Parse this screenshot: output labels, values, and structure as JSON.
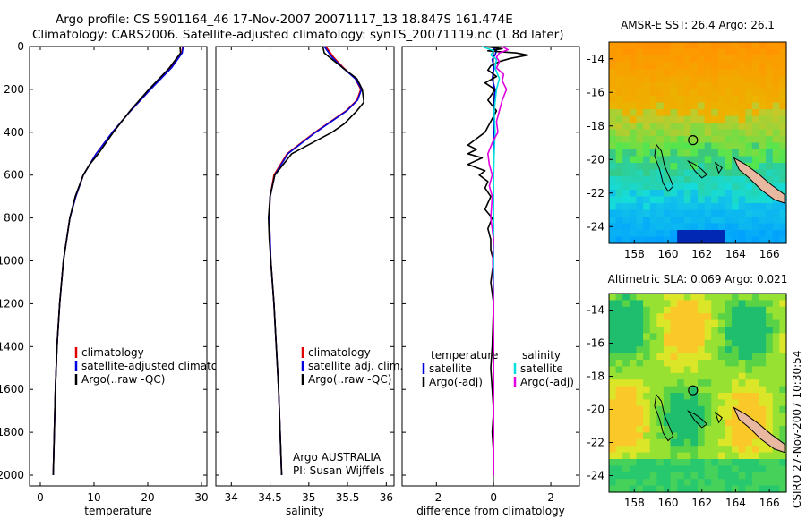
{
  "header": {
    "line1": "Argo profile: CS 5901164_46 17-Nov-2007 20071117_13 18.847S 161.474E",
    "line2": "Climatology: CARS2006. Satellite-adjusted climatology: synTS_20071119.nc (1.8d later)"
  },
  "depth_ticks": [
    "0",
    "200",
    "400",
    "600",
    "800",
    "1000",
    "1200",
    "1400",
    "1600",
    "1800",
    "2000"
  ],
  "chart_data": [
    {
      "type": "line",
      "xlabel": "temperature",
      "ylabel": "depth",
      "xlim": [
        -2,
        31
      ],
      "ylim": [
        2050,
        0
      ],
      "xticks": [
        "0",
        "10",
        "20",
        "30"
      ],
      "legend": [
        "climatology",
        "satellite-adjusted climatology",
        "Argo(..raw -QC)"
      ],
      "legend_colors": [
        "#e00000",
        "#0000e0",
        "#000000"
      ],
      "series": [
        {
          "name": "climatology",
          "color": "#e00000",
          "depth": [
            0,
            30,
            100,
            200,
            300,
            400,
            500,
            600,
            700,
            800,
            1000,
            1200,
            1400,
            1600,
            1800,
            2000
          ],
          "values": [
            26.5,
            26.3,
            24.3,
            20.5,
            16.8,
            13.4,
            10.4,
            8.0,
            6.6,
            5.5,
            4.3,
            3.6,
            3.1,
            2.8,
            2.6,
            2.4
          ]
        },
        {
          "name": "satellite-adjusted climatology",
          "color": "#0000e0",
          "depth": [
            0,
            30,
            100,
            200,
            300,
            400,
            500,
            600,
            700,
            800,
            1000,
            1200,
            1400,
            1600,
            1800,
            2000
          ],
          "values": [
            26.6,
            26.4,
            24.4,
            20.5,
            16.8,
            13.4,
            10.4,
            8.0,
            6.6,
            5.5,
            4.3,
            3.6,
            3.1,
            2.8,
            2.6,
            2.4
          ]
        },
        {
          "name": "Argo(..raw -QC)",
          "color": "#000000",
          "depth": [
            0,
            30,
            100,
            200,
            300,
            400,
            500,
            550,
            600,
            700,
            800,
            1000,
            1200,
            1400,
            1600,
            1800,
            2000
          ],
          "values": [
            26.0,
            26.1,
            24.0,
            20.2,
            16.7,
            13.6,
            10.8,
            9.2,
            8.0,
            6.5,
            5.5,
            4.3,
            3.6,
            3.1,
            2.8,
            2.6,
            2.4
          ]
        }
      ]
    },
    {
      "type": "line",
      "xlabel": "salinity",
      "ylabel": "depth",
      "xlim": [
        33.8,
        36.1
      ],
      "ylim": [
        2050,
        0
      ],
      "xticks": [
        "34",
        "34.5",
        "35",
        "35.5",
        "36"
      ],
      "legend": [
        "climatology",
        "satellite adj. clim.",
        "Argo(..raw -QC)"
      ],
      "legend_colors": [
        "#e00000",
        "#0000e0",
        "#000000"
      ],
      "annotation": [
        "Argo AUSTRALIA",
        "PI: Susan Wijffels"
      ],
      "series": [
        {
          "name": "climatology",
          "color": "#e00000",
          "depth": [
            0,
            50,
            100,
            150,
            200,
            250,
            300,
            400,
            500,
            600,
            700,
            800,
            900,
            1000,
            1200,
            1400,
            1600,
            1800,
            2000
          ],
          "values": [
            35.22,
            35.32,
            35.45,
            35.6,
            35.67,
            35.62,
            35.48,
            35.08,
            34.72,
            34.55,
            34.5,
            34.49,
            34.5,
            34.51,
            34.55,
            34.58,
            34.61,
            34.63,
            34.65
          ]
        },
        {
          "name": "satellite adj. clim.",
          "color": "#0000e0",
          "depth": [
            0,
            50,
            100,
            150,
            200,
            250,
            300,
            400,
            500,
            600,
            700,
            800,
            900,
            1000,
            1200,
            1400,
            1600,
            1800,
            2000
          ],
          "values": [
            35.2,
            35.3,
            35.44,
            35.6,
            35.68,
            35.63,
            35.49,
            35.09,
            34.73,
            34.56,
            34.5,
            34.49,
            34.5,
            34.51,
            34.55,
            34.58,
            34.61,
            34.63,
            34.65
          ]
        },
        {
          "name": "Argo(..raw -QC)",
          "color": "#000000",
          "depth": [
            0,
            30,
            60,
            100,
            150,
            200,
            260,
            300,
            360,
            400,
            450,
            500,
            600,
            700,
            800,
            900,
            1000,
            1200,
            1400,
            1600,
            1800,
            2000
          ],
          "values": [
            35.18,
            35.2,
            35.3,
            35.44,
            35.62,
            35.69,
            35.71,
            35.62,
            35.46,
            35.3,
            35.04,
            34.78,
            34.56,
            34.5,
            34.48,
            34.49,
            34.51,
            34.55,
            34.58,
            34.61,
            34.63,
            34.65
          ]
        }
      ]
    },
    {
      "type": "line",
      "xlabel": "difference from climatology",
      "ylabel": "depth",
      "xlim": [
        -3.2,
        3.0
      ],
      "ylim": [
        2050,
        0
      ],
      "xticks": [
        "-2",
        "0",
        "2"
      ],
      "legend": [
        "temperature",
        "satellite",
        "Argo(-adj)",
        "salinity",
        "satellite",
        "Argo(-adj)"
      ],
      "legend_colors": [
        "#ffffff",
        "#0000e0",
        "#000000",
        "#ffffff",
        "#00e0e0",
        "#e000e0"
      ],
      "series": [
        {
          "name": "temperature satellite",
          "color": "#0000e0",
          "depth": [
            0,
            20,
            40,
            60,
            100,
            150,
            200,
            300,
            400,
            600,
            800,
            1200,
            2000
          ],
          "values": [
            -0.05,
            0.1,
            0.05,
            -0.05,
            0.02,
            -0.05,
            0.05,
            0.02,
            0.0,
            0.0,
            0.0,
            0.0,
            0.0
          ]
        },
        {
          "name": "temperature Argo(-adj)",
          "color": "#000000",
          "depth": [
            0,
            10,
            20,
            30,
            40,
            55,
            70,
            90,
            110,
            140,
            170,
            200,
            250,
            300,
            350,
            400,
            430,
            460,
            480,
            500,
            520,
            550,
            580,
            600,
            630,
            660,
            700,
            760,
            800,
            850,
            900,
            950,
            1000,
            1100,
            1200,
            1400,
            1500,
            1600,
            1700,
            1800,
            1900,
            2000
          ],
          "values": [
            -0.3,
            0.3,
            -0.2,
            0.8,
            1.2,
            0.6,
            0.2,
            -0.1,
            -0.2,
            0.1,
            -0.3,
            0.05,
            -0.2,
            0.1,
            -0.1,
            -0.3,
            -0.6,
            -0.9,
            -0.6,
            -0.9,
            -0.4,
            -0.9,
            -0.3,
            -0.5,
            -0.2,
            -0.3,
            -0.1,
            -0.3,
            -0.05,
            -0.2,
            -0.1,
            -0.1,
            0.0,
            -0.1,
            0.0,
            -0.05,
            -0.1,
            -0.05,
            0.0,
            -0.05,
            0.0,
            0.0
          ]
        },
        {
          "name": "salinity satellite",
          "color": "#00e0e0",
          "depth": [
            0,
            20,
            40,
            60,
            100,
            150,
            200,
            300,
            400,
            500,
            600,
            800,
            1200,
            1600,
            2000
          ],
          "values": [
            -0.4,
            0.0,
            -0.1,
            0.1,
            0.05,
            0.2,
            0.1,
            0.02,
            0.05,
            0.02,
            0.0,
            0.0,
            0.0,
            0.0,
            0.0
          ]
        },
        {
          "name": "salinity Argo(-adj)",
          "color": "#e000e0",
          "depth": [
            0,
            15,
            30,
            50,
            70,
            100,
            130,
            160,
            200,
            250,
            300,
            350,
            400,
            450,
            500,
            550,
            600,
            650,
            700,
            800,
            900,
            1000,
            1200,
            1600,
            2000
          ],
          "values": [
            0.3,
            0.5,
            0.2,
            0.1,
            0.2,
            0.1,
            0.35,
            0.3,
            0.45,
            0.3,
            0.2,
            0.1,
            0.15,
            -0.05,
            -0.2,
            -0.15,
            -0.05,
            -0.15,
            -0.05,
            -0.1,
            0.0,
            -0.03,
            0.0,
            0.0,
            0.0
          ]
        }
      ]
    },
    {
      "type": "heatmap",
      "title": "AMSR-E SST: 26.4 Argo: 26.1",
      "xlim": [
        156.5,
        167.0
      ],
      "ylim": [
        -25,
        -13
      ],
      "xticks": [
        "158",
        "160",
        "162",
        "164",
        "166"
      ],
      "yticks": [
        "-14",
        "-16",
        "-18",
        "-20",
        "-22",
        "-24"
      ],
      "profile_location": {
        "lon": 161.474,
        "lat": -18.847
      }
    },
    {
      "type": "heatmap",
      "title": "Altimetric SLA: 0.069 Argo: 0.021",
      "xlim": [
        156.5,
        167.0
      ],
      "ylim": [
        -25,
        -13
      ],
      "xticks": [
        "158",
        "160",
        "162",
        "164",
        "166"
      ],
      "yticks": [
        "-14",
        "-16",
        "-18",
        "-20",
        "-22",
        "-24"
      ],
      "profile_location": {
        "lon": 161.474,
        "lat": -18.847
      }
    }
  ],
  "footer": {
    "stamp": "CSIRO 27-Nov-2007 10:30:54"
  }
}
